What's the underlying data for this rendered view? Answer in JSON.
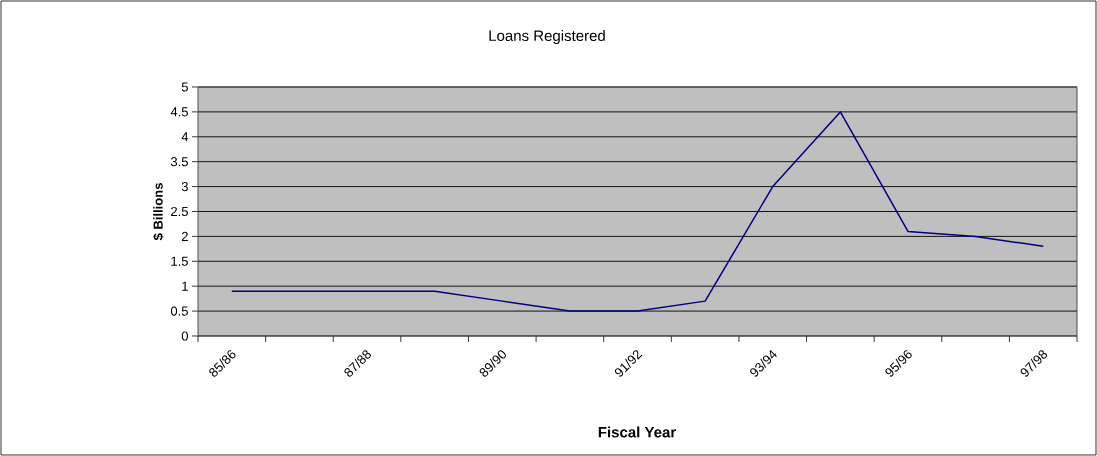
{
  "chart_data": {
    "type": "line",
    "title": "Loans Registered",
    "xlabel": "Fiscal Year",
    "ylabel": "$ Billions",
    "categories": [
      "85/86",
      null,
      "87/88",
      null,
      "89/90",
      null,
      "91/92",
      null,
      "93/94",
      null,
      "95/96",
      null,
      "97/98"
    ],
    "series": [
      {
        "color": "#000080",
        "values": [
          0.9,
          0.9,
          0.9,
          0.9,
          0.7,
          0.5,
          0.5,
          0.7,
          3.0,
          4.5,
          2.1,
          2.0,
          1.8
        ]
      }
    ],
    "ylim": [
      0,
      5
    ],
    "yticks": [
      0,
      0.5,
      1,
      1.5,
      2,
      2.5,
      3,
      3.5,
      4,
      4.5,
      5
    ],
    "grid": "y"
  }
}
